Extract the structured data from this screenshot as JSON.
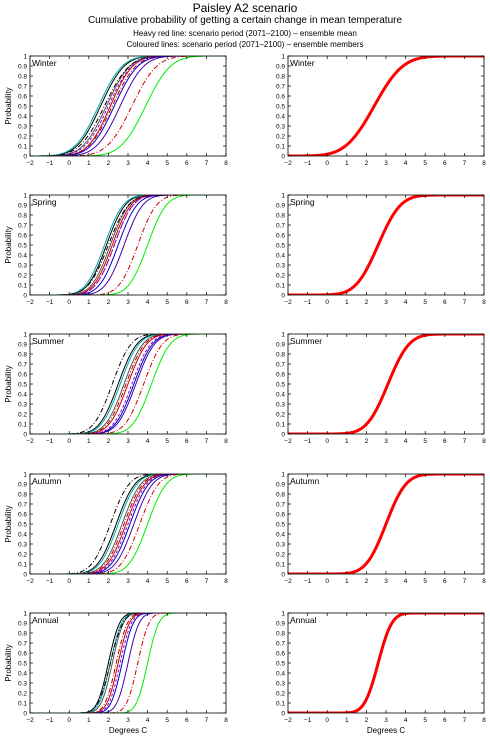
{
  "title": "Paisley A2 scenario",
  "subtitle": "Cumulative probability of getting a certain change in mean temperature",
  "legend_heavy": "Heavy red line: scenario period (2071–2100) – ensemble mean",
  "legend_coloured": "Coloured lines: scenario period (2071–2100) – ensemble members",
  "colors": {
    "ensemble_mean": "#ff0000",
    "axis": "#000000",
    "background": "#ffffff"
  },
  "chart_data": [
    {
      "type": "line",
      "season": "Winter",
      "panel": "members",
      "xlabel": "",
      "ylabel": "Probability",
      "xlim": [
        -2,
        8
      ],
      "ylim": [
        0,
        1
      ],
      "xticks": [
        -2,
        -1,
        0,
        1,
        2,
        3,
        4,
        5,
        6,
        7,
        8
      ],
      "yticks": [
        0,
        0.1,
        0.2,
        0.3,
        0.4,
        0.5,
        0.6,
        0.7,
        0.8,
        0.9,
        1
      ],
      "grid": false,
      "series": [
        {
          "color": "#000000",
          "style": "solid",
          "mean": 1.6,
          "sd": 0.95
        },
        {
          "color": "#00aaaa",
          "style": "solid",
          "mean": 1.5,
          "sd": 0.95
        },
        {
          "color": "#555555",
          "style": "solid",
          "mean": 1.9,
          "sd": 0.95
        },
        {
          "color": "#000000",
          "style": "dashdot",
          "mean": 1.8,
          "sd": 1.0
        },
        {
          "color": "#aa0000",
          "style": "dashdot",
          "mean": 2.2,
          "sd": 0.95
        },
        {
          "color": "#cc0000",
          "style": "solid",
          "mean": 2.1,
          "sd": 0.9
        },
        {
          "color": "#0000cc",
          "style": "solid",
          "mean": 2.3,
          "sd": 0.95
        },
        {
          "color": "#8800cc",
          "style": "dashed",
          "mean": 2.0,
          "sd": 0.95
        },
        {
          "color": "#4400aa",
          "style": "solid",
          "mean": 2.6,
          "sd": 0.95
        },
        {
          "color": "#cc0000",
          "style": "dashdot",
          "mean": 3.2,
          "sd": 1.0
        },
        {
          "color": "#00ee00",
          "style": "solid",
          "mean": 3.9,
          "sd": 1.0
        }
      ]
    },
    {
      "type": "line",
      "season": "Winter",
      "panel": "ensemble mean",
      "xlabel": "",
      "ylabel": "",
      "xlim": [
        -2,
        8
      ],
      "ylim": [
        0,
        1
      ],
      "xticks": [
        -2,
        -1,
        0,
        1,
        2,
        3,
        4,
        5,
        6,
        7,
        8
      ],
      "yticks": [
        0,
        0.1,
        0.2,
        0.3,
        0.4,
        0.5,
        0.6,
        0.7,
        0.8,
        0.9,
        1
      ],
      "grid": false,
      "series": [
        {
          "color": "#ff0000",
          "style": "heavy",
          "mean": 2.4,
          "sd": 1.15
        }
      ]
    },
    {
      "type": "line",
      "season": "Spring",
      "panel": "members",
      "xlabel": "",
      "ylabel": "Probability",
      "xlim": [
        -2,
        8
      ],
      "ylim": [
        0,
        1
      ],
      "xticks": [
        -2,
        -1,
        0,
        1,
        2,
        3,
        4,
        5,
        6,
        7,
        8
      ],
      "yticks": [
        0,
        0.1,
        0.2,
        0.3,
        0.4,
        0.5,
        0.6,
        0.7,
        0.8,
        0.9,
        1
      ],
      "grid": false,
      "series": [
        {
          "color": "#000000",
          "style": "solid",
          "mean": 1.9,
          "sd": 0.75
        },
        {
          "color": "#00aaaa",
          "style": "solid",
          "mean": 1.8,
          "sd": 0.75
        },
        {
          "color": "#555555",
          "style": "solid",
          "mean": 2.1,
          "sd": 0.75
        },
        {
          "color": "#000000",
          "style": "dashdot",
          "mean": 2.0,
          "sd": 0.8
        },
        {
          "color": "#aa0000",
          "style": "dashdot",
          "mean": 2.3,
          "sd": 0.75
        },
        {
          "color": "#cc0000",
          "style": "solid",
          "mean": 2.2,
          "sd": 0.75
        },
        {
          "color": "#0000cc",
          "style": "solid",
          "mean": 2.5,
          "sd": 0.75
        },
        {
          "color": "#8800cc",
          "style": "dashed",
          "mean": 2.3,
          "sd": 0.75
        },
        {
          "color": "#4400aa",
          "style": "solid",
          "mean": 2.8,
          "sd": 0.75
        },
        {
          "color": "#cc0000",
          "style": "dashdot",
          "mean": 3.5,
          "sd": 0.75
        },
        {
          "color": "#00ee00",
          "style": "solid",
          "mean": 4.0,
          "sd": 0.75
        }
      ]
    },
    {
      "type": "line",
      "season": "Spring",
      "panel": "ensemble mean",
      "xlabel": "",
      "ylabel": "",
      "xlim": [
        -2,
        8
      ],
      "ylim": [
        0,
        1
      ],
      "xticks": [
        -2,
        -1,
        0,
        1,
        2,
        3,
        4,
        5,
        6,
        7,
        8
      ],
      "yticks": [
        0,
        0.1,
        0.2,
        0.3,
        0.4,
        0.5,
        0.6,
        0.7,
        0.8,
        0.9,
        1
      ],
      "grid": false,
      "series": [
        {
          "color": "#ff0000",
          "style": "heavy",
          "mean": 2.6,
          "sd": 0.9
        }
      ]
    },
    {
      "type": "line",
      "season": "Summer",
      "panel": "members",
      "xlabel": "",
      "ylabel": "Probability",
      "xlim": [
        -2,
        8
      ],
      "ylim": [
        0,
        1
      ],
      "xticks": [
        -2,
        -1,
        0,
        1,
        2,
        3,
        4,
        5,
        6,
        7,
        8
      ],
      "yticks": [
        0,
        0.1,
        0.2,
        0.3,
        0.4,
        0.5,
        0.6,
        0.7,
        0.8,
        0.9,
        1
      ],
      "grid": false,
      "series": [
        {
          "color": "#000000",
          "style": "dashdot",
          "mean": 2.2,
          "sd": 0.75
        },
        {
          "color": "#000000",
          "style": "solid",
          "mean": 2.5,
          "sd": 0.75
        },
        {
          "color": "#00aaaa",
          "style": "solid",
          "mean": 2.6,
          "sd": 0.75
        },
        {
          "color": "#555555",
          "style": "solid",
          "mean": 2.8,
          "sd": 0.75
        },
        {
          "color": "#aa0000",
          "style": "dashdot",
          "mean": 2.9,
          "sd": 0.75
        },
        {
          "color": "#cc0000",
          "style": "solid",
          "mean": 3.0,
          "sd": 0.75
        },
        {
          "color": "#0000cc",
          "style": "solid",
          "mean": 3.3,
          "sd": 0.75
        },
        {
          "color": "#4400aa",
          "style": "solid",
          "mean": 3.4,
          "sd": 0.75
        },
        {
          "color": "#8800cc",
          "style": "dashed",
          "mean": 3.2,
          "sd": 0.75
        },
        {
          "color": "#cc0000",
          "style": "dashdot",
          "mean": 3.8,
          "sd": 0.75
        },
        {
          "color": "#00ee00",
          "style": "solid",
          "mean": 4.2,
          "sd": 0.75
        }
      ]
    },
    {
      "type": "line",
      "season": "Summer",
      "panel": "ensemble mean",
      "xlabel": "",
      "ylabel": "",
      "xlim": [
        -2,
        8
      ],
      "ylim": [
        0,
        1
      ],
      "xticks": [
        -2,
        -1,
        0,
        1,
        2,
        3,
        4,
        5,
        6,
        7,
        8
      ],
      "yticks": [
        0,
        0.1,
        0.2,
        0.3,
        0.4,
        0.5,
        0.6,
        0.7,
        0.8,
        0.9,
        1
      ],
      "grid": false,
      "series": [
        {
          "color": "#ff0000",
          "style": "heavy",
          "mean": 3.1,
          "sd": 0.85
        }
      ]
    },
    {
      "type": "line",
      "season": "Autumn",
      "panel": "members",
      "xlabel": "",
      "ylabel": "Probability",
      "xlim": [
        -2,
        8
      ],
      "ylim": [
        0,
        1
      ],
      "xticks": [
        -2,
        -1,
        0,
        1,
        2,
        3,
        4,
        5,
        6,
        7,
        8
      ],
      "yticks": [
        0,
        0.1,
        0.2,
        0.3,
        0.4,
        0.5,
        0.6,
        0.7,
        0.8,
        0.9,
        1
      ],
      "grid": false,
      "series": [
        {
          "color": "#000000",
          "style": "dashdot",
          "mean": 2.1,
          "sd": 0.75
        },
        {
          "color": "#000000",
          "style": "solid",
          "mean": 2.4,
          "sd": 0.75
        },
        {
          "color": "#00aaaa",
          "style": "solid",
          "mean": 2.5,
          "sd": 0.75
        },
        {
          "color": "#555555",
          "style": "solid",
          "mean": 2.7,
          "sd": 0.75
        },
        {
          "color": "#aa0000",
          "style": "dashdot",
          "mean": 2.8,
          "sd": 0.75
        },
        {
          "color": "#cc0000",
          "style": "solid",
          "mean": 2.9,
          "sd": 0.75
        },
        {
          "color": "#0000cc",
          "style": "solid",
          "mean": 3.1,
          "sd": 0.75
        },
        {
          "color": "#4400aa",
          "style": "solid",
          "mean": 3.3,
          "sd": 0.75
        },
        {
          "color": "#8800cc",
          "style": "dashed",
          "mean": 3.0,
          "sd": 0.75
        },
        {
          "color": "#cc0000",
          "style": "dashdot",
          "mean": 3.6,
          "sd": 0.75
        },
        {
          "color": "#00ee00",
          "style": "solid",
          "mean": 4.0,
          "sd": 0.75
        }
      ]
    },
    {
      "type": "line",
      "season": "Autumn",
      "panel": "ensemble mean",
      "xlabel": "",
      "ylabel": "",
      "xlim": [
        -2,
        8
      ],
      "ylim": [
        0,
        1
      ],
      "xticks": [
        -2,
        -1,
        0,
        1,
        2,
        3,
        4,
        5,
        6,
        7,
        8
      ],
      "yticks": [
        0,
        0.1,
        0.2,
        0.3,
        0.4,
        0.5,
        0.6,
        0.7,
        0.8,
        0.9,
        1
      ],
      "grid": false,
      "series": [
        {
          "color": "#ff0000",
          "style": "heavy",
          "mean": 3.0,
          "sd": 0.8
        }
      ]
    },
    {
      "type": "line",
      "season": "Annual",
      "panel": "members",
      "xlabel": "Degrees C",
      "ylabel": "Probability",
      "xlim": [
        -2,
        8
      ],
      "ylim": [
        0,
        1
      ],
      "xticks": [
        -2,
        -1,
        0,
        1,
        2,
        3,
        4,
        5,
        6,
        7,
        8
      ],
      "yticks": [
        0,
        0.1,
        0.2,
        0.3,
        0.4,
        0.5,
        0.6,
        0.7,
        0.8,
        0.9,
        1
      ],
      "grid": false,
      "series": [
        {
          "color": "#000000",
          "style": "solid",
          "mean": 2.0,
          "sd": 0.45
        },
        {
          "color": "#00aaaa",
          "style": "solid",
          "mean": 2.1,
          "sd": 0.45
        },
        {
          "color": "#555555",
          "style": "solid",
          "mean": 2.2,
          "sd": 0.45
        },
        {
          "color": "#000000",
          "style": "dashdot",
          "mean": 2.1,
          "sd": 0.5
        },
        {
          "color": "#aa0000",
          "style": "dashdot",
          "mean": 2.4,
          "sd": 0.45
        },
        {
          "color": "#cc0000",
          "style": "solid",
          "mean": 2.5,
          "sd": 0.45
        },
        {
          "color": "#0000cc",
          "style": "solid",
          "mean": 2.7,
          "sd": 0.45
        },
        {
          "color": "#8800cc",
          "style": "dashed",
          "mean": 2.6,
          "sd": 0.45
        },
        {
          "color": "#4400aa",
          "style": "solid",
          "mean": 3.0,
          "sd": 0.45
        },
        {
          "color": "#cc0000",
          "style": "dashdot",
          "mean": 3.5,
          "sd": 0.45
        },
        {
          "color": "#00ee00",
          "style": "solid",
          "mean": 4.0,
          "sd": 0.45
        }
      ]
    },
    {
      "type": "line",
      "season": "Annual",
      "panel": "ensemble mean",
      "xlabel": "Degrees C",
      "ylabel": "",
      "xlim": [
        -2,
        8
      ],
      "ylim": [
        0,
        1
      ],
      "xticks": [
        -2,
        -1,
        0,
        1,
        2,
        3,
        4,
        5,
        6,
        7,
        8
      ],
      "yticks": [
        0,
        0.1,
        0.2,
        0.3,
        0.4,
        0.5,
        0.6,
        0.7,
        0.8,
        0.9,
        1
      ],
      "grid": false,
      "series": [
        {
          "color": "#ff0000",
          "style": "heavy",
          "mean": 2.6,
          "sd": 0.55
        }
      ]
    }
  ]
}
